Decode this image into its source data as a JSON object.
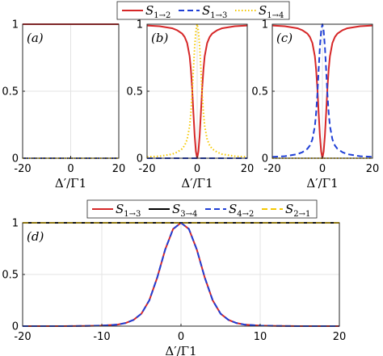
{
  "colors": {
    "red": "#d62728",
    "blue": "#1f3fd6",
    "yellow": "#f5c800",
    "black": "#000000"
  },
  "legend_top": [
    {
      "key": "r12",
      "color": "#d62728",
      "dash": "solid",
      "main": "S",
      "sub": "1→2"
    },
    {
      "key": "r13",
      "color": "#1f3fd6",
      "dash": "dashed",
      "main": "S",
      "sub": "1→3"
    },
    {
      "key": "r14",
      "color": "#f5c800",
      "dash": "dotted",
      "main": "S",
      "sub": "1→4"
    }
  ],
  "legend_bottom": [
    {
      "key": "b13",
      "color": "#d62728",
      "dash": "solid",
      "main": "S",
      "sub": "1→3"
    },
    {
      "key": "b34",
      "color": "#000000",
      "dash": "solid",
      "main": "S",
      "sub": "3→4"
    },
    {
      "key": "b42",
      "color": "#1f3fd6",
      "dash": "dashed",
      "main": "S",
      "sub": "4→2"
    },
    {
      "key": "b21",
      "color": "#f5c800",
      "dash": "dashed",
      "main": "S",
      "sub": "2→1"
    }
  ],
  "chart_data": [
    {
      "type": "line",
      "panel_label": "(a)",
      "xlabel": "Δ′/Γ1",
      "xlim": [
        -20,
        20
      ],
      "ylim": [
        0,
        1
      ],
      "xticks": [
        "-20",
        "0",
        "20"
      ],
      "yticks": [
        "0",
        "0.5",
        "1"
      ],
      "grid": true,
      "series": [
        {
          "name": "S1→2",
          "color": "#d62728",
          "dash": "solid",
          "x": [
            -20,
            20
          ],
          "y": [
            1,
            1
          ]
        },
        {
          "name": "S1→3",
          "color": "#1f3fd6",
          "dash": "dashed",
          "x": [
            -20,
            20
          ],
          "y": [
            0,
            0
          ]
        },
        {
          "name": "S1→4",
          "color": "#f5c800",
          "dash": "dotted",
          "x": [
            -20,
            20
          ],
          "y": [
            0,
            0
          ]
        }
      ]
    },
    {
      "type": "line",
      "panel_label": "(b)",
      "xlabel": "Δ′/Γ1",
      "xlim": [
        -20,
        20
      ],
      "ylim": [
        0,
        1
      ],
      "xticks": [
        "-20",
        "0",
        "20"
      ],
      "yticks": [
        "0",
        "0.5",
        "1"
      ],
      "grid": true,
      "series": [
        {
          "name": "S1→2",
          "color": "#d62728",
          "dash": "solid",
          "x": [
            -20,
            -15,
            -10,
            -8,
            -6,
            -5,
            -4,
            -3,
            -2.5,
            -2,
            -1.5,
            -1,
            -0.5,
            0,
            0.5,
            1,
            1.5,
            2,
            2.5,
            3,
            4,
            5,
            6,
            8,
            10,
            15,
            20
          ],
          "y": [
            0.99,
            0.985,
            0.97,
            0.955,
            0.93,
            0.905,
            0.86,
            0.76,
            0.66,
            0.52,
            0.34,
            0.17,
            0.05,
            0,
            0.05,
            0.17,
            0.34,
            0.52,
            0.66,
            0.76,
            0.86,
            0.905,
            0.93,
            0.955,
            0.97,
            0.985,
            0.99
          ]
        },
        {
          "name": "S1→3",
          "color": "#1f3fd6",
          "dash": "dashed",
          "x": [
            -20,
            20
          ],
          "y": [
            0,
            0
          ]
        },
        {
          "name": "S1→4",
          "color": "#f5c800",
          "dash": "dotted",
          "x": [
            -20,
            -15,
            -10,
            -8,
            -6,
            -5,
            -4,
            -3,
            -2.5,
            -2,
            -1.5,
            -1,
            -0.5,
            0,
            0.5,
            1,
            1.5,
            2,
            2.5,
            3,
            4,
            5,
            6,
            8,
            10,
            15,
            20
          ],
          "y": [
            0.01,
            0.015,
            0.03,
            0.045,
            0.07,
            0.095,
            0.14,
            0.24,
            0.34,
            0.48,
            0.66,
            0.83,
            0.95,
            1,
            0.95,
            0.83,
            0.66,
            0.48,
            0.34,
            0.24,
            0.14,
            0.095,
            0.07,
            0.045,
            0.03,
            0.015,
            0.01
          ]
        }
      ]
    },
    {
      "type": "line",
      "panel_label": "(c)",
      "xlabel": "Δ′/Γ1",
      "xlim": [
        -20,
        20
      ],
      "ylim": [
        0,
        1
      ],
      "xticks": [
        "-20",
        "0",
        "20"
      ],
      "yticks": [
        "0",
        "0.5",
        "1"
      ],
      "grid": true,
      "series": [
        {
          "name": "S1→2",
          "color": "#d62728",
          "dash": "solid",
          "x": [
            -20,
            -15,
            -10,
            -8,
            -6,
            -5,
            -4,
            -3,
            -2.5,
            -2,
            -1.5,
            -1,
            -0.5,
            0,
            0.5,
            1,
            1.5,
            2,
            2.5,
            3,
            4,
            5,
            6,
            8,
            10,
            15,
            20
          ],
          "y": [
            0.99,
            0.985,
            0.97,
            0.955,
            0.93,
            0.905,
            0.86,
            0.76,
            0.66,
            0.52,
            0.34,
            0.17,
            0.05,
            0,
            0.05,
            0.17,
            0.34,
            0.52,
            0.66,
            0.76,
            0.86,
            0.905,
            0.93,
            0.955,
            0.97,
            0.985,
            0.99
          ]
        },
        {
          "name": "S1→3",
          "color": "#1f3fd6",
          "dash": "dashed",
          "x": [
            -20,
            -15,
            -10,
            -8,
            -6,
            -5,
            -4,
            -3,
            -2.5,
            -2,
            -1.5,
            -1,
            -0.5,
            0,
            0.5,
            1,
            1.5,
            2,
            2.5,
            3,
            4,
            5,
            6,
            8,
            10,
            15,
            20
          ],
          "y": [
            0.01,
            0.015,
            0.03,
            0.045,
            0.07,
            0.095,
            0.14,
            0.24,
            0.34,
            0.48,
            0.66,
            0.83,
            0.95,
            1,
            0.95,
            0.83,
            0.66,
            0.48,
            0.34,
            0.24,
            0.14,
            0.095,
            0.07,
            0.045,
            0.03,
            0.015,
            0.01
          ]
        },
        {
          "name": "S1→4",
          "color": "#f5c800",
          "dash": "dotted",
          "x": [
            -20,
            20
          ],
          "y": [
            0,
            0
          ]
        }
      ]
    },
    {
      "type": "line",
      "panel_label": "(d)",
      "xlabel": "Δ′/Γ1",
      "xlim": [
        -20,
        20
      ],
      "ylim": [
        0,
        1
      ],
      "xticks": [
        "-20",
        "-10",
        "0",
        "10",
        "20"
      ],
      "yticks": [
        "0",
        "0.5",
        "1"
      ],
      "grid": true,
      "series": [
        {
          "name": "S1→3",
          "color": "#d62728",
          "dash": "solid",
          "x": [
            -20,
            -15,
            -12,
            -10,
            -8,
            -7,
            -6,
            -5,
            -4,
            -3,
            -2,
            -1,
            0,
            1,
            2,
            3,
            4,
            5,
            6,
            7,
            8,
            10,
            12,
            15,
            20
          ],
          "y": [
            0,
            0,
            0.002,
            0.005,
            0.015,
            0.03,
            0.06,
            0.12,
            0.25,
            0.47,
            0.74,
            0.94,
            1,
            0.94,
            0.74,
            0.47,
            0.25,
            0.12,
            0.06,
            0.03,
            0.015,
            0.005,
            0.002,
            0,
            0
          ]
        },
        {
          "name": "S3→4",
          "color": "#000000",
          "dash": "solid",
          "x": [
            -20,
            20
          ],
          "y": [
            1,
            1
          ]
        },
        {
          "name": "S4→2",
          "color": "#1f3fd6",
          "dash": "dashed",
          "x": [
            -20,
            -15,
            -12,
            -10,
            -8,
            -7,
            -6,
            -5,
            -4,
            -3,
            -2,
            -1,
            0,
            1,
            2,
            3,
            4,
            5,
            6,
            7,
            8,
            10,
            12,
            15,
            20
          ],
          "y": [
            0,
            0,
            0.002,
            0.005,
            0.015,
            0.03,
            0.06,
            0.12,
            0.25,
            0.47,
            0.74,
            0.94,
            1,
            0.94,
            0.74,
            0.47,
            0.25,
            0.12,
            0.06,
            0.03,
            0.015,
            0.005,
            0.002,
            0,
            0
          ]
        },
        {
          "name": "S2→1",
          "color": "#f5c800",
          "dash": "dashed",
          "x": [
            -20,
            20
          ],
          "y": [
            1,
            1
          ]
        }
      ]
    }
  ]
}
